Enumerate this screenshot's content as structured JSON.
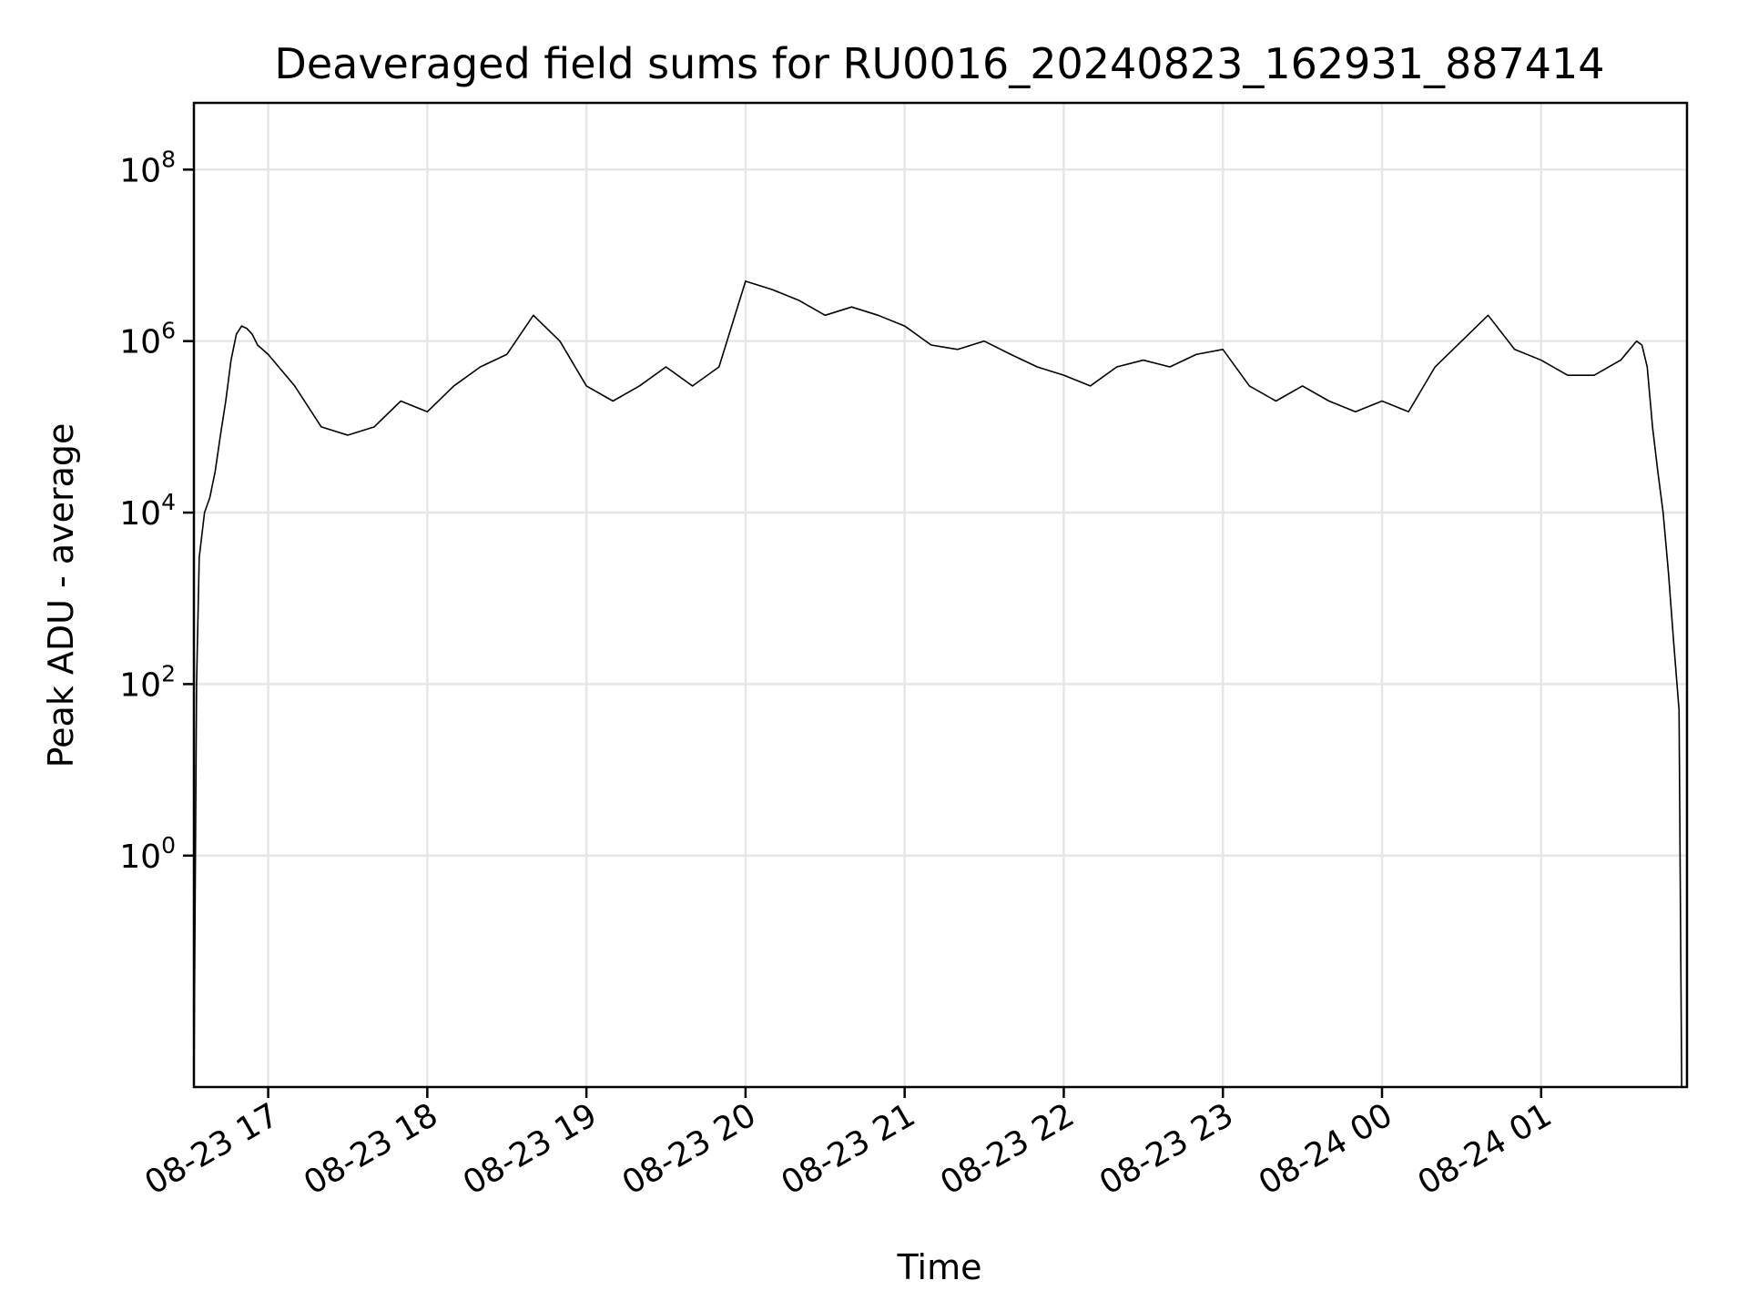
{
  "chart_data": {
    "type": "line",
    "title": "Deaveraged field sums for RU0016_20240823_162931_887414",
    "xlabel": "Time",
    "ylabel": "Peak ADU - average",
    "yscale": "log",
    "xlim": [
      "2024-08-23 16:32",
      "2024-08-24 01:55"
    ],
    "ylim": [
      0.002,
      600000000
    ],
    "grid": true,
    "line_color": "#000000",
    "x_ticks": [
      {
        "value": "2024-08-23 17:00",
        "label": "08-23 17"
      },
      {
        "value": "2024-08-23 18:00",
        "label": "08-23 18"
      },
      {
        "value": "2024-08-23 19:00",
        "label": "08-23 19"
      },
      {
        "value": "2024-08-23 20:00",
        "label": "08-23 20"
      },
      {
        "value": "2024-08-23 21:00",
        "label": "08-23 21"
      },
      {
        "value": "2024-08-23 22:00",
        "label": "08-23 22"
      },
      {
        "value": "2024-08-23 23:00",
        "label": "08-23 23"
      },
      {
        "value": "2024-08-24 00:00",
        "label": "08-24 00"
      },
      {
        "value": "2024-08-24 01:00",
        "label": "08-24 01"
      }
    ],
    "y_ticks": [
      {
        "value": 1,
        "base": "10",
        "exp": "0"
      },
      {
        "value": 100,
        "base": "10",
        "exp": "2"
      },
      {
        "value": 10000,
        "base": "10",
        "exp": "4"
      },
      {
        "value": 1000000,
        "base": "10",
        "exp": "6"
      },
      {
        "value": 100000000,
        "base": "10",
        "exp": "8"
      }
    ],
    "series": [
      {
        "x": [
          "2024-08-23 16:32",
          "2024-08-23 16:33",
          "2024-08-23 16:34",
          "2024-08-23 16:36",
          "2024-08-23 16:38",
          "2024-08-23 16:40",
          "2024-08-23 16:42",
          "2024-08-23 16:44",
          "2024-08-23 16:46",
          "2024-08-23 16:48",
          "2024-08-23 16:50",
          "2024-08-23 16:52",
          "2024-08-23 16:54",
          "2024-08-23 16:56",
          "2024-08-23 17:00",
          "2024-08-23 17:10",
          "2024-08-23 17:20",
          "2024-08-23 17:30",
          "2024-08-23 17:40",
          "2024-08-23 17:50",
          "2024-08-23 18:00",
          "2024-08-23 18:10",
          "2024-08-23 18:20",
          "2024-08-23 18:30",
          "2024-08-23 18:40",
          "2024-08-23 18:50",
          "2024-08-23 19:00",
          "2024-08-23 19:10",
          "2024-08-23 19:20",
          "2024-08-23 19:30",
          "2024-08-23 19:40",
          "2024-08-23 19:50",
          "2024-08-23 20:00",
          "2024-08-23 20:10",
          "2024-08-23 20:20",
          "2024-08-23 20:30",
          "2024-08-23 20:40",
          "2024-08-23 20:50",
          "2024-08-23 21:00",
          "2024-08-23 21:10",
          "2024-08-23 21:20",
          "2024-08-23 21:30",
          "2024-08-23 21:40",
          "2024-08-23 21:50",
          "2024-08-23 22:00",
          "2024-08-23 22:10",
          "2024-08-23 22:20",
          "2024-08-23 22:30",
          "2024-08-23 22:40",
          "2024-08-23 22:50",
          "2024-08-23 23:00",
          "2024-08-23 23:10",
          "2024-08-23 23:20",
          "2024-08-23 23:30",
          "2024-08-23 23:40",
          "2024-08-23 23:50",
          "2024-08-24 00:00",
          "2024-08-24 00:10",
          "2024-08-24 00:20",
          "2024-08-24 00:30",
          "2024-08-24 00:40",
          "2024-08-24 00:50",
          "2024-08-24 01:00",
          "2024-08-24 01:10",
          "2024-08-24 01:20",
          "2024-08-24 01:30",
          "2024-08-24 01:36",
          "2024-08-24 01:38",
          "2024-08-24 01:40",
          "2024-08-24 01:42",
          "2024-08-24 01:44",
          "2024-08-24 01:46",
          "2024-08-24 01:48",
          "2024-08-24 01:50",
          "2024-08-24 01:52",
          "2024-08-24 01:53"
        ],
        "y": [
          0.002,
          100,
          3000,
          10000,
          15000,
          30000,
          80000,
          200000,
          600000,
          1200000,
          1500000,
          1400000,
          1200000,
          900000,
          700000,
          300000,
          100000,
          80000,
          100000,
          200000,
          150000,
          300000,
          500000,
          700000,
          2000000,
          1000000,
          300000,
          200000,
          300000,
          500000,
          300000,
          500000,
          5000000,
          4000000,
          3000000,
          2000000,
          2500000,
          2000000,
          1500000,
          900000,
          800000,
          1000000,
          700000,
          500000,
          400000,
          300000,
          500000,
          600000,
          500000,
          700000,
          800000,
          300000,
          200000,
          300000,
          200000,
          150000,
          200000,
          150000,
          500000,
          1000000,
          2000000,
          800000,
          600000,
          400000,
          400000,
          600000,
          1000000,
          900000,
          500000,
          100000,
          30000,
          10000,
          2000,
          300,
          50,
          0.002
        ]
      }
    ]
  }
}
